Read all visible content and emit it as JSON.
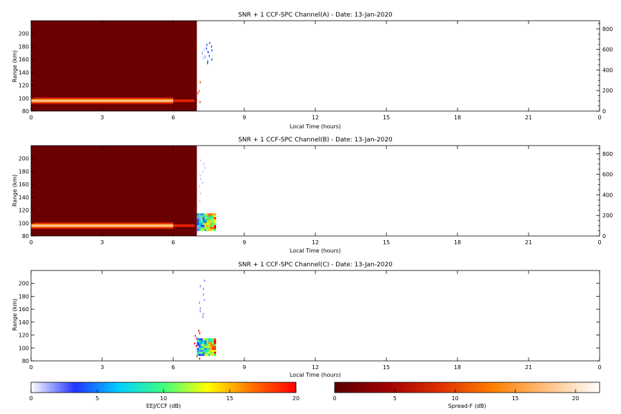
{
  "chart_data": [
    {
      "type": "heatmap",
      "title": "SNR + 1 CCF-SPC Channel(A) - Date: 13-Jan-2020",
      "xlabel": "Local Time (hours)",
      "ylabel": "Range (km)",
      "xlim": [
        0,
        24
      ],
      "ylim": [
        80,
        220
      ],
      "x_ticks": [
        "0",
        "3",
        "6",
        "9",
        "12",
        "15",
        "18",
        "21",
        "0"
      ],
      "y_ticks": [
        "80",
        "100",
        "120",
        "140",
        "160",
        "180",
        "200"
      ],
      "right_axis_ticks": [
        "0",
        "200",
        "400",
        "600",
        "800"
      ],
      "right_axis_lim": [
        0,
        880
      ],
      "spread_f_block": {
        "x_start": 0,
        "x_end": 7.0,
        "y_start": 80,
        "y_end": 220,
        "value_db": 1
      },
      "bright_layer": {
        "x_start": 0,
        "x_end": 6.0,
        "range_km": 96,
        "value_db": 18
      },
      "ccf_patch": null,
      "sparse_points": [
        {
          "x": 7.0,
          "y_start": 92,
          "y_end": 140,
          "value_db": 18
        },
        {
          "x": 7.5,
          "y_start": 150,
          "y_end": 190,
          "value_db": 4
        },
        {
          "x": 7.3,
          "y_start": 160,
          "y_end": 180,
          "value_db": 1
        }
      ]
    },
    {
      "type": "heatmap",
      "title": "SNR + 1 CCF-SPC Channel(B) - Date: 13-Jan-2020",
      "xlabel": "Local Time (hours)",
      "ylabel": "Range (km)",
      "xlim": [
        0,
        24
      ],
      "ylim": [
        80,
        220
      ],
      "x_ticks": [
        "0",
        "3",
        "6",
        "9",
        "12",
        "15",
        "18",
        "21",
        "0"
      ],
      "y_ticks": [
        "80",
        "100",
        "120",
        "140",
        "160",
        "180",
        "200"
      ],
      "right_axis_ticks": [
        "0",
        "200",
        "400",
        "600",
        "800"
      ],
      "right_axis_lim": [
        0,
        880
      ],
      "spread_f_block": {
        "x_start": 0,
        "x_end": 7.0,
        "y_start": 80,
        "y_end": 220,
        "value_db": 1
      },
      "bright_layer": {
        "x_start": 0,
        "x_end": 6.0,
        "range_km": 96,
        "value_db": 18
      },
      "ccf_patch": {
        "x_start": 7.0,
        "x_end": 7.8,
        "y_start": 88,
        "y_end": 115
      },
      "sparse_points": [
        {
          "x": 7.2,
          "y_start": 130,
          "y_end": 210,
          "value_db": 1
        }
      ]
    },
    {
      "type": "heatmap",
      "title": "SNR + 1 CCF-SPC Channel(C) - Date: 13-Jan-2020",
      "xlabel": "Local Time (hours)",
      "ylabel": "Range (km)",
      "xlim": [
        0,
        24
      ],
      "ylim": [
        80,
        220
      ],
      "x_ticks": [
        "0",
        "3",
        "6",
        "9",
        "12",
        "15",
        "18",
        "21",
        "0"
      ],
      "y_ticks": [
        "80",
        "100",
        "120",
        "140",
        "160",
        "180",
        "200"
      ],
      "right_axis_ticks": [],
      "right_axis_lim": null,
      "spread_f_block": null,
      "bright_layer": null,
      "ccf_patch": {
        "x_start": 7.0,
        "x_end": 7.8,
        "y_start": 88,
        "y_end": 115
      },
      "sparse_points": [
        {
          "x": 7.0,
          "y_start": 85,
          "y_end": 140,
          "value_db": 20
        },
        {
          "x": 7.2,
          "y_start": 150,
          "y_end": 210,
          "value_db": 2
        }
      ]
    }
  ],
  "colorbars": [
    {
      "label": "EEJ/CCF (dB)",
      "ticks": [
        "0",
        "5",
        "10",
        "15",
        "20"
      ],
      "range": [
        0,
        20
      ],
      "colors": [
        "#ffffff",
        "#2233ff",
        "#00d0ff",
        "#40ff80",
        "#ffff00",
        "#ff7000",
        "#ff0000"
      ]
    },
    {
      "label": "Spread-F (dB)",
      "ticks": [
        "0",
        "5",
        "10",
        "15",
        "20"
      ],
      "range": [
        0,
        22
      ],
      "colors": [
        "#5a0000",
        "#a00000",
        "#e03000",
        "#ff8000",
        "#ffc080",
        "#ffffff"
      ]
    }
  ]
}
